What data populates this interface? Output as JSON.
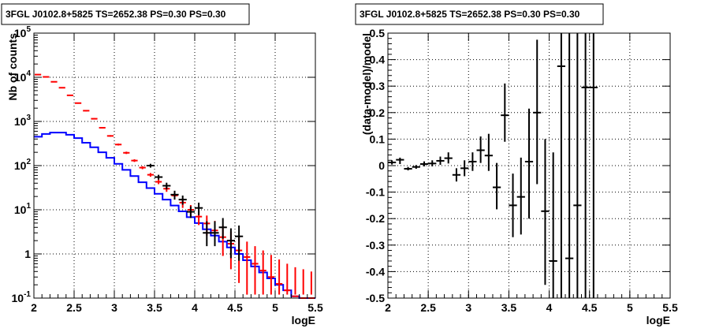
{
  "panels": [
    {
      "title": "3FGL J0102.8+5825 TS=2652.38 PS=0.30 PS=0.30",
      "xlabel": "logE",
      "ylabel": "Nb of counts",
      "xticks": [
        "2",
        "2.5",
        "3",
        "3.5",
        "4",
        "4.5",
        "5",
        "5.5"
      ],
      "ytick_mantissa": "10",
      "ytick_exponents": [
        "-1",
        "",
        "1",
        "2",
        "3",
        "4",
        "5"
      ],
      "ytick_plain": [
        "",
        "1",
        "",
        "",
        "",
        "",
        ""
      ]
    },
    {
      "title": "3FGL J0102.8+5825 TS=2652.38 PS=0.30 PS=0.30",
      "xlabel": "logE",
      "ylabel": "(data-model)/model",
      "xticks": [
        "2",
        "2.5",
        "3",
        "3.5",
        "4",
        "4.5",
        "5",
        "5.5"
      ],
      "yticks": [
        "-0.5",
        "-0.4",
        "-0.3",
        "-0.2",
        "-0.1",
        "0",
        "0.1",
        "0.2",
        "0.3",
        "0.4",
        "0.5"
      ]
    }
  ],
  "colors": {
    "data": "#000000",
    "total_model": "#ff0000",
    "source_model": "#0000ff"
  },
  "chart_data": [
    {
      "type": "line",
      "xlim": [
        2,
        5.5
      ],
      "ylim": [
        0.1,
        100000
      ],
      "yscale": "log",
      "grid": true,
      "bin_width": 0.1,
      "bin_centers": [
        2.05,
        2.15,
        2.25,
        2.35,
        2.45,
        2.55,
        2.65,
        2.75,
        2.85,
        2.95,
        3.05,
        3.15,
        3.25,
        3.35,
        3.45,
        3.55,
        3.65,
        3.75,
        3.85,
        3.95,
        4.05,
        4.15,
        4.25,
        4.35,
        4.45,
        4.55,
        4.65,
        4.75,
        4.85,
        4.95,
        5.05,
        5.15,
        5.25,
        5.35,
        5.45
      ],
      "series": [
        {
          "role": "source_model",
          "style": "histogram",
          "values": [
            450,
            520,
            560,
            560,
            500,
            420,
            330,
            260,
            200,
            150,
            110,
            80,
            58,
            42,
            31,
            23,
            17,
            12.5,
            9.2,
            6.8,
            5.0,
            3.6,
            2.6,
            1.9,
            1.4,
            1.0,
            0.72,
            0.52,
            0.38,
            0.28,
            0.2,
            0.15,
            0.11,
            0.1,
            0.1
          ]
        },
        {
          "role": "total_model",
          "style": "bars_with_errors",
          "values": [
            11500,
            10200,
            7900,
            5800,
            3900,
            2600,
            1750,
            1150,
            720,
            470,
            300,
            195,
            130,
            90,
            62,
            43,
            30,
            21,
            14.5,
            10,
            7,
            4.9,
            3.4,
            2.4,
            1.7,
            1.2,
            0.85,
            0.6,
            0.42,
            0.3,
            0.21,
            0.15,
            0.11,
            0.1,
            0.1
          ],
          "err_low": [
            11300,
            10000,
            7750,
            5650,
            3800,
            2520,
            1690,
            1110,
            690,
            450,
            285,
            183,
            121,
            83,
            56,
            38,
            25.5,
            17,
            11,
            7.2,
            4.5,
            2.6,
            1.6,
            0.9,
            0.45,
            0.22,
            0.12,
            0.12,
            0.12,
            0.12,
            0.12,
            0.12,
            0.12,
            0.12,
            0.12
          ],
          "err_high": [
            11700,
            10400,
            8050,
            5950,
            4000,
            2680,
            1810,
            1190,
            750,
            490,
            315,
            207,
            139,
            97,
            68,
            48,
            35,
            25,
            18,
            12.8,
            9.6,
            7.4,
            5.6,
            4.3,
            3.2,
            2.5,
            1.9,
            1.5,
            1.2,
            0.95,
            0.75,
            0.6,
            0.5,
            0.45,
            0.4
          ]
        },
        {
          "role": "data",
          "style": "points_with_errors",
          "x": [
            3.45,
            3.55,
            3.65,
            3.75,
            3.85,
            3.95,
            4.05,
            4.15,
            4.25,
            4.35,
            4.45,
            4.55
          ],
          "values": [
            100,
            55,
            35,
            22,
            17,
            9,
            11,
            3,
            3,
            4,
            2,
            2.5
          ],
          "err_low": [
            90,
            48,
            29,
            17,
            13,
            6.5,
            7.5,
            1.5,
            1.5,
            2.2,
            0.8,
            0.7
          ],
          "err_high": [
            110,
            62,
            41,
            27,
            21,
            12,
            14.5,
            5.5,
            5.5,
            6.5,
            3.8,
            4.4
          ]
        }
      ]
    },
    {
      "type": "scatter",
      "xlim": [
        2,
        5.5
      ],
      "ylim": [
        -0.5,
        0.5
      ],
      "grid": true,
      "series": [
        {
          "role": "residuals",
          "x": [
            2.05,
            2.15,
            2.25,
            2.35,
            2.45,
            2.55,
            2.65,
            2.75,
            2.85,
            2.95,
            3.05,
            3.15,
            3.25,
            3.35,
            3.45,
            3.55,
            3.65,
            3.75,
            3.85,
            3.95,
            4.05,
            4.15,
            4.25,
            4.35,
            4.45,
            4.55
          ],
          "values": [
            0.012,
            0.022,
            -0.012,
            -0.005,
            0.006,
            0.008,
            0.018,
            0.028,
            -0.035,
            -0.01,
            0.015,
            0.058,
            0.038,
            -0.082,
            0.19,
            -0.15,
            -0.118,
            0.015,
            0.2,
            -0.172,
            -0.36,
            0.375,
            -0.35,
            -0.15,
            0.295,
            0.295
          ],
          "err_low": [
            0.004,
            0.006,
            -0.018,
            -0.012,
            -0.003,
            -0.003,
            0.003,
            0.008,
            -0.06,
            -0.04,
            -0.02,
            0.01,
            -0.02,
            -0.165,
            0.09,
            -0.27,
            -0.26,
            -0.2,
            -0.07,
            -0.45,
            -0.5,
            -0.5,
            -0.5,
            -0.5,
            -0.5,
            -0.5
          ],
          "err_high": [
            0.02,
            0.03,
            -0.005,
            0.002,
            0.016,
            0.02,
            0.034,
            0.05,
            -0.01,
            0.02,
            0.05,
            0.11,
            0.12,
            0.01,
            0.31,
            -0.03,
            0.03,
            0.215,
            0.475,
            0.1,
            0.05,
            0.5,
            0.5,
            0.5,
            0.5,
            0.5
          ],
          "visible_index": [
            0,
            1,
            2,
            3,
            4,
            5,
            6,
            7,
            8,
            9,
            10,
            11,
            12,
            13,
            14,
            15,
            16,
            17,
            18,
            19,
            20,
            22,
            21,
            24,
            23
          ]
        }
      ]
    }
  ]
}
